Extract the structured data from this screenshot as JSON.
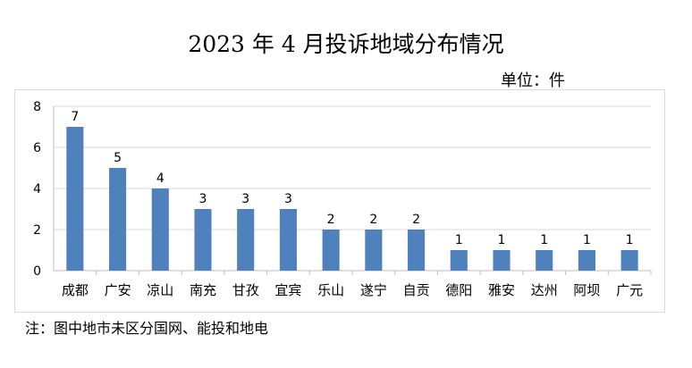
{
  "title": "2023 年 4 月投诉地域分布情况",
  "unit_label": "单位：件",
  "note": "注：图中地市未区分国网、能投和地电",
  "chart_data": {
    "type": "bar",
    "categories": [
      "成都",
      "广安",
      "凉山",
      "南充",
      "甘孜",
      "宜宾",
      "乐山",
      "遂宁",
      "自贡",
      "德阳",
      "雅安",
      "达州",
      "阿坝",
      "广元"
    ],
    "values": [
      7,
      5,
      4,
      3,
      3,
      3,
      2,
      2,
      2,
      1,
      1,
      1,
      1,
      1
    ],
    "title": "2023 年 4 月投诉地域分布情况",
    "ylim": [
      0,
      8
    ],
    "yticks": [
      0,
      2,
      4,
      6,
      8
    ],
    "grid": true,
    "legend": "none",
    "bar_color": "#4f81bd",
    "grid_color": "#d9d9d9"
  }
}
